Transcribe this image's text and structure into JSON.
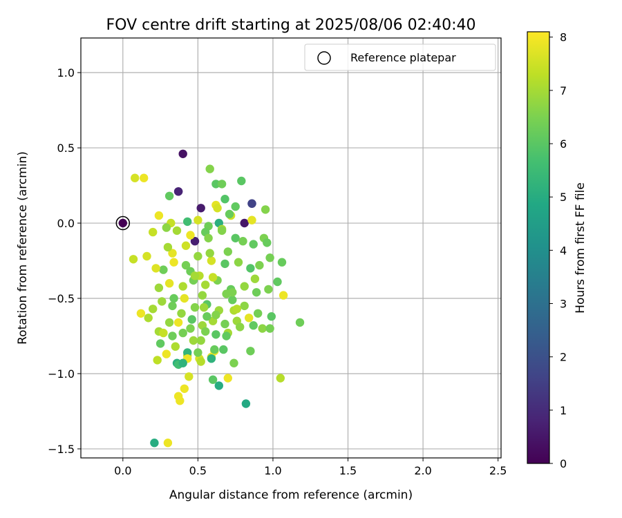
{
  "chart_data": {
    "type": "scatter",
    "title": "FOV centre drift starting at 2025/08/06 02:40:40",
    "xlabel": "Angular distance from reference (arcmin)",
    "ylabel": "Rotation from reference (arcmin)",
    "xlim": [
      -0.28,
      2.52
    ],
    "ylim": [
      -1.56,
      1.23
    ],
    "x_ticks": [
      0.0,
      0.5,
      1.0,
      1.5,
      2.0,
      2.5
    ],
    "x_tick_labels": [
      "0.0",
      "0.5",
      "1.0",
      "1.5",
      "2.0",
      "2.5"
    ],
    "y_ticks": [
      1.0,
      0.5,
      0.0,
      -0.5,
      -1.0,
      -1.5
    ],
    "y_tick_labels": [
      "1.0",
      "0.5",
      "0.0",
      "−0.5",
      "−1.0",
      "−1.5"
    ],
    "grid": true,
    "legend": {
      "position": "top-right",
      "entries": [
        "Reference platepar"
      ]
    },
    "reference_point": {
      "x": 0.0,
      "y": 0.0
    },
    "colorbar": {
      "label": "Hours from first FF file",
      "colormap": "viridis",
      "range": [
        0,
        8.1
      ],
      "ticks": [
        0,
        1,
        2,
        3,
        4,
        5,
        6,
        7,
        8
      ],
      "tick_labels": [
        "0",
        "1",
        "2",
        "3",
        "4",
        "5",
        "6",
        "7",
        "8"
      ]
    },
    "series": [
      {
        "x": [
          0.0,
          0.4,
          0.37,
          0.37,
          0.86,
          0.86,
          0.52,
          0.81,
          0.48,
          0.58,
          0.08,
          0.14,
          0.62,
          0.66,
          0.79,
          0.31,
          0.95,
          0.72,
          0.62,
          0.63,
          0.68,
          0.71,
          0.75,
          0.86,
          0.24,
          0.32,
          0.43,
          0.5,
          0.57,
          0.64,
          0.2,
          0.29,
          0.36,
          0.45,
          0.55,
          0.66,
          0.75,
          0.8,
          0.87,
          0.94,
          0.96,
          0.07,
          0.16,
          0.27,
          0.34,
          0.42,
          0.5,
          0.59,
          0.68,
          0.77,
          0.85,
          0.91,
          1.06,
          0.24,
          0.31,
          0.4,
          0.47,
          0.55,
          0.63,
          0.72,
          0.81,
          0.89,
          0.97,
          1.03,
          1.07,
          0.2,
          0.26,
          0.33,
          0.41,
          0.48,
          0.56,
          0.64,
          0.73,
          0.81,
          0.9,
          0.99,
          0.12,
          0.17,
          0.24,
          0.31,
          0.37,
          0.45,
          0.53,
          0.6,
          0.68,
          0.76,
          0.84,
          0.93,
          1.18,
          0.25,
          0.33,
          0.4,
          0.47,
          0.55,
          0.62,
          0.7,
          0.78,
          0.87,
          0.98,
          0.23,
          0.29,
          0.36,
          0.43,
          0.51,
          0.59,
          0.67,
          0.74,
          0.27,
          0.35,
          0.43,
          0.52,
          0.61,
          0.69,
          0.21,
          0.3,
          0.37,
          0.44,
          0.52,
          0.6,
          0.7,
          0.85,
          0.38,
          0.43,
          0.5,
          0.59,
          0.61,
          0.41,
          0.64,
          1.05,
          0.37,
          0.4,
          0.82,
          0.22,
          0.33,
          0.51,
          0.7,
          0.88,
          0.98,
          0.39,
          0.56,
          0.74,
          0.46,
          0.62,
          0.76,
          0.53,
          0.69,
          0.57,
          0.3,
          0.45,
          0.6,
          0.34,
          0.54,
          0.73,
          0.42,
          0.66,
          0.48,
          0.58
        ],
        "y": [
          0.0,
          0.46,
          0.21,
          0.21,
          0.13,
          0.13,
          0.1,
          0.0,
          -0.12,
          0.36,
          0.3,
          0.3,
          0.26,
          0.26,
          0.28,
          0.18,
          0.09,
          0.05,
          0.12,
          0.1,
          0.16,
          0.06,
          0.11,
          0.02,
          0.05,
          0.0,
          0.01,
          0.02,
          -0.02,
          0.0,
          -0.06,
          -0.03,
          -0.05,
          -0.08,
          -0.06,
          -0.04,
          -0.1,
          -0.12,
          -0.14,
          -0.1,
          -0.13,
          -0.24,
          -0.22,
          -0.31,
          -0.26,
          -0.28,
          -0.22,
          -0.25,
          -0.27,
          -0.26,
          -0.3,
          -0.28,
          -0.26,
          -0.43,
          -0.4,
          -0.42,
          -0.38,
          -0.41,
          -0.38,
          -0.44,
          -0.42,
          -0.46,
          -0.44,
          -0.39,
          -0.48,
          -0.57,
          -0.52,
          -0.55,
          -0.5,
          -0.56,
          -0.54,
          -0.58,
          -0.51,
          -0.55,
          -0.6,
          -0.62,
          -0.6,
          -0.63,
          -0.72,
          -0.66,
          -0.66,
          -0.7,
          -0.68,
          -0.65,
          -0.67,
          -0.65,
          -0.63,
          -0.7,
          -0.66,
          -0.8,
          -0.75,
          -0.73,
          -0.78,
          -0.72,
          -0.74,
          -0.73,
          -0.69,
          -0.68,
          -0.7,
          -0.91,
          -0.87,
          -0.93,
          -0.88,
          -0.9,
          -0.89,
          -0.84,
          -0.93,
          -0.73,
          -0.82,
          -0.86,
          -0.78,
          -0.85,
          -0.75,
          -1.46,
          -1.46,
          -1.15,
          -1.02,
          -0.92,
          -1.04,
          -1.03,
          -0.85,
          -1.18,
          -0.9,
          -0.86,
          -0.9,
          -0.84,
          -1.1,
          -1.08,
          -1.03,
          -0.94,
          -0.93,
          -1.2,
          -0.3,
          -0.2,
          -0.35,
          -0.19,
          -0.37,
          -0.23,
          -0.6,
          -0.62,
          -0.58,
          -0.64,
          -0.61,
          -0.57,
          -0.48,
          -0.47,
          -0.1,
          -0.16,
          -0.32,
          -0.36,
          -0.5,
          -0.56,
          -0.46,
          -0.15,
          -0.05,
          -0.35,
          -0.2
        ],
        "hours": [
          0.0,
          0.4,
          0.8,
          0.8,
          1.6,
          1.6,
          0.6,
          0.5,
          0.7,
          6.6,
          7.6,
          7.9,
          6.0,
          6.3,
          6.0,
          6.1,
          6.6,
          7.5,
          7.8,
          7.6,
          5.9,
          6.2,
          6.1,
          7.8,
          7.9,
          7.4,
          5.6,
          7.6,
          6.3,
          5.1,
          7.4,
          6.7,
          7.0,
          7.9,
          6.2,
          7.0,
          6.0,
          6.4,
          6.1,
          6.5,
          6.2,
          7.4,
          7.6,
          6.3,
          7.9,
          6.4,
          6.8,
          7.6,
          6.0,
          6.7,
          5.9,
          6.5,
          6.2,
          6.9,
          7.8,
          7.1,
          6.4,
          7.0,
          6.5,
          6.2,
          6.8,
          6.3,
          6.5,
          6.1,
          7.9,
          7.0,
          6.9,
          6.3,
          7.8,
          6.6,
          6.0,
          6.9,
          6.2,
          6.7,
          6.4,
          6.0,
          7.9,
          7.1,
          7.0,
          6.8,
          7.9,
          6.5,
          6.9,
          7.0,
          6.4,
          6.9,
          7.8,
          6.7,
          6.3,
          6.1,
          6.3,
          6.4,
          6.9,
          6.5,
          6.0,
          7.0,
          6.7,
          6.1,
          6.4,
          7.3,
          7.9,
          5.1,
          7.4,
          7.6,
          7.7,
          6.0,
          6.5,
          7.4,
          7.1,
          5.3,
          6.8,
          7.9,
          6.1,
          5.0,
          7.9,
          7.9,
          7.6,
          7.2,
          6.0,
          7.9,
          6.3,
          7.9,
          7.9,
          6.4,
          5.2,
          6.2,
          7.9,
          5.0,
          7.2,
          5.6,
          5.2,
          4.9,
          7.7,
          7.8,
          7.2,
          6.5,
          6.9,
          6.4,
          6.8,
          6.2,
          7.1,
          6.0,
          6.6,
          7.2,
          6.8,
          6.5,
          6.6,
          7.0,
          6.3,
          7.4,
          6.2,
          6.9,
          6.5,
          7.5,
          6.6,
          7.0,
          6.8
        ]
      }
    ]
  }
}
